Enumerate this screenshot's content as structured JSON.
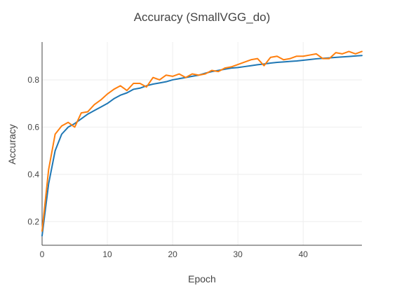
{
  "chart_data": {
    "type": "line",
    "title": "Accuracy (SmallVGG_do)",
    "xlabel": "Epoch",
    "ylabel": "Accuracy",
    "xlim": [
      0,
      49
    ],
    "ylim": [
      0.1,
      0.96
    ],
    "xticks": [
      0,
      10,
      20,
      30,
      40
    ],
    "yticks": [
      0.2,
      0.4,
      0.6,
      0.8
    ],
    "grid": true,
    "legend": "none",
    "x": [
      0,
      1,
      2,
      3,
      4,
      5,
      6,
      7,
      8,
      9,
      10,
      11,
      12,
      13,
      14,
      15,
      16,
      17,
      18,
      19,
      20,
      21,
      22,
      23,
      24,
      25,
      26,
      27,
      28,
      29,
      30,
      31,
      32,
      33,
      34,
      35,
      36,
      37,
      38,
      39,
      40,
      41,
      42,
      43,
      44,
      45,
      46,
      47,
      48,
      49
    ],
    "series": [
      {
        "color": "#1f77b4",
        "values": [
          0.14,
          0.36,
          0.5,
          0.57,
          0.6,
          0.615,
          0.635,
          0.655,
          0.67,
          0.685,
          0.7,
          0.72,
          0.735,
          0.745,
          0.76,
          0.765,
          0.775,
          0.782,
          0.787,
          0.792,
          0.8,
          0.805,
          0.81,
          0.815,
          0.82,
          0.828,
          0.835,
          0.84,
          0.845,
          0.85,
          0.852,
          0.856,
          0.86,
          0.864,
          0.867,
          0.871,
          0.874,
          0.876,
          0.878,
          0.88,
          0.883,
          0.886,
          0.889,
          0.891,
          0.893,
          0.895,
          0.897,
          0.899,
          0.901,
          0.903
        ]
      },
      {
        "color": "#ff7f0e",
        "values": [
          0.16,
          0.42,
          0.57,
          0.605,
          0.62,
          0.6,
          0.66,
          0.665,
          0.695,
          0.715,
          0.74,
          0.76,
          0.775,
          0.755,
          0.785,
          0.785,
          0.77,
          0.81,
          0.8,
          0.82,
          0.815,
          0.825,
          0.81,
          0.825,
          0.82,
          0.825,
          0.84,
          0.835,
          0.85,
          0.855,
          0.865,
          0.875,
          0.885,
          0.89,
          0.86,
          0.895,
          0.9,
          0.885,
          0.89,
          0.9,
          0.9,
          0.905,
          0.91,
          0.89,
          0.89,
          0.915,
          0.91,
          0.92,
          0.91,
          0.92
        ]
      }
    ]
  }
}
